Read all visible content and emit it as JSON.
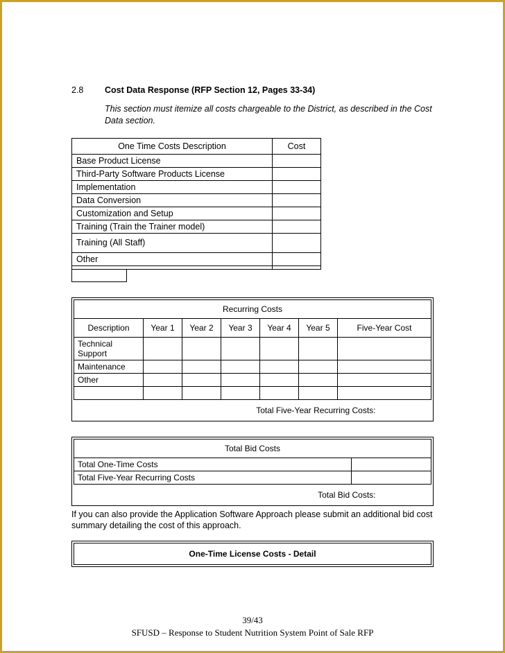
{
  "section": {
    "number": "2.8",
    "title": "Cost Data Response  (RFP Section 12, Pages 33-34)"
  },
  "instruction": "This section must itemize all costs chargeable to the District, as described in the Cost Data section.",
  "table1": {
    "headers": {
      "desc": "One Time Costs Description",
      "cost": "Cost"
    },
    "rows": [
      "Base Product License",
      "Third-Party Software Products License",
      "Implementation",
      "Data Conversion",
      "Customization and Setup",
      "Training  (Train the Trainer model)",
      "Training  (All Staff)",
      "",
      "Other",
      ""
    ]
  },
  "table2": {
    "title": "Recurring Costs",
    "headers": {
      "desc": "Description",
      "y1": "Year 1",
      "y2": "Year 2",
      "y3": "Year 3",
      "y4": "Year 4",
      "y5": "Year 5",
      "fy": "Five-Year Cost"
    },
    "rows": [
      "Technical Support",
      "Maintenance",
      "Other",
      ""
    ],
    "total": "Total Five-Year Recurring Costs:"
  },
  "table3": {
    "title": "Total Bid Costs",
    "rows": [
      "Total One-Time Costs",
      "Total Five-Year Recurring Costs"
    ],
    "total": "Total Bid Costs:"
  },
  "paragraph": "If you can also provide the Application Software Approach please submit an additional bid cost summary detailing the cost of this approach.",
  "table4": {
    "title": "One-Time License Costs - Detail"
  },
  "footer": {
    "page": "39/43",
    "doc": "SFUSD – Response to Student Nutrition System Point of Sale RFP"
  }
}
